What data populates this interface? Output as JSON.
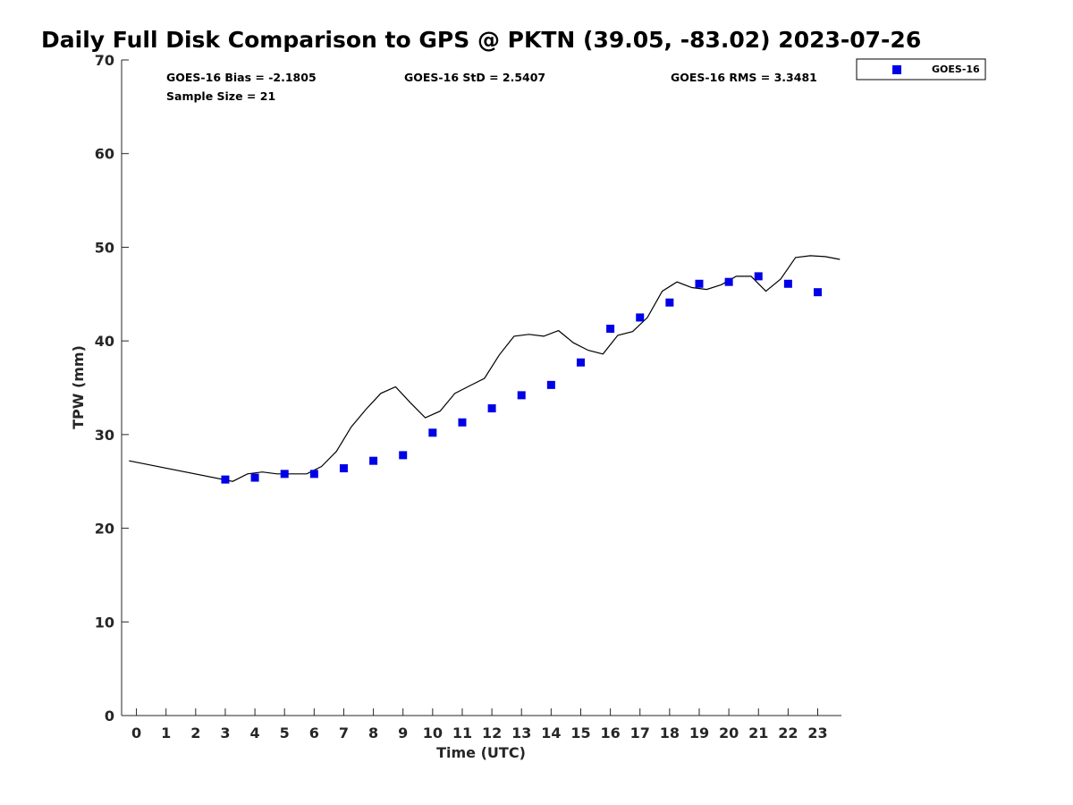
{
  "chart_data": {
    "type": "scatter",
    "title": "Daily Full Disk Comparison to GPS @ PKTN (39.05, -83.02) 2023-07-26",
    "xlabel": "Time (UTC)",
    "ylabel": "TPW (mm)",
    "xlim": [
      -0.5,
      23.8
    ],
    "ylim": [
      0,
      70
    ],
    "xticks": [
      "0",
      "1",
      "2",
      "3",
      "4",
      "5",
      "6",
      "7",
      "8",
      "9",
      "10",
      "11",
      "12",
      "13",
      "14",
      "15",
      "16",
      "17",
      "18",
      "19",
      "20",
      "21",
      "22",
      "23"
    ],
    "yticks": [
      "0",
      "10",
      "20",
      "30",
      "40",
      "50",
      "60",
      "70"
    ],
    "grid": false,
    "legend_position": "top-right, outside plot",
    "stats": {
      "bias": "GOES-16 Bias = -2.1805",
      "std": "GOES-16 StD = 2.5407",
      "rms": "GOES-16 RMS = 3.3481",
      "sample": "Sample Size = 21"
    },
    "series": [
      {
        "name": "GOES-16",
        "kind": "markers",
        "color": "#0000e6",
        "marker": "square",
        "x": [
          3,
          4,
          5,
          6,
          7,
          8,
          9,
          10,
          11,
          12,
          13,
          14,
          15,
          16,
          17,
          18,
          19,
          20,
          21,
          22,
          23
        ],
        "y": [
          25.2,
          25.4,
          25.8,
          25.8,
          26.4,
          27.2,
          27.8,
          30.2,
          31.3,
          32.8,
          34.2,
          35.3,
          37.7,
          41.3,
          42.5,
          44.1,
          46.1,
          46.3,
          46.9,
          46.1,
          45.2
        ]
      },
      {
        "kind": "line",
        "color": "#000000",
        "x": [
          -0.25,
          3.25,
          3.75,
          4.25,
          4.75,
          5.25,
          5.75,
          6.25,
          6.75,
          7.25,
          7.75,
          8.25,
          8.75,
          9.25,
          9.75,
          10.25,
          10.75,
          11.25,
          11.75,
          12.25,
          12.75,
          13.25,
          13.75,
          14.25,
          14.75,
          15.25,
          15.75,
          16.25,
          16.75,
          17.25,
          17.75,
          18.25,
          18.75,
          19.25,
          19.75,
          20.25,
          20.75,
          21.25,
          21.75,
          22.25,
          22.75,
          23.25,
          23.75
        ],
        "y": [
          27.2,
          25.0,
          25.8,
          26.0,
          25.8,
          25.8,
          25.8,
          26.6,
          28.2,
          30.8,
          32.7,
          34.4,
          35.1,
          33.4,
          31.8,
          32.5,
          34.4,
          35.2,
          36.0,
          38.5,
          40.5,
          40.7,
          40.5,
          41.1,
          39.8,
          39.0,
          38.6,
          40.6,
          41.0,
          42.5,
          45.3,
          46.3,
          45.7,
          45.5,
          46.0,
          46.9,
          46.9,
          45.3,
          46.6,
          48.9,
          49.1,
          49.0,
          48.7
        ]
      }
    ]
  }
}
